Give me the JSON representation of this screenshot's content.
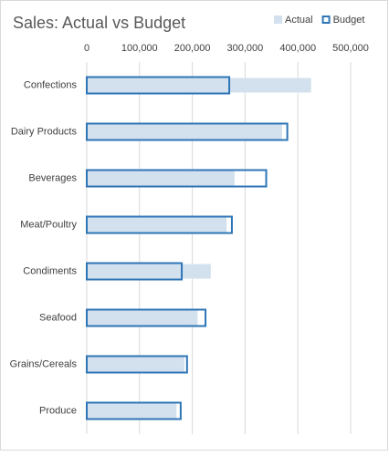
{
  "chart_data": {
    "type": "bar",
    "orientation": "horizontal",
    "title": "Sales: Actual vs Budget",
    "categories": [
      "Confections",
      "Dairy Products",
      "Beverages",
      "Meat/Poultry",
      "Condiments",
      "Seafood",
      "Grains/Cereals",
      "Produce"
    ],
    "series": [
      {
        "name": "Actual",
        "color": "#d3e0ee",
        "style": "filled",
        "values": [
          425000,
          370000,
          280000,
          265000,
          235000,
          210000,
          185000,
          170000
        ]
      },
      {
        "name": "Budget",
        "color": "#2e75b6",
        "style": "outline",
        "values": [
          270000,
          380000,
          340000,
          275000,
          180000,
          225000,
          190000,
          178000
        ]
      }
    ],
    "xlim": [
      0,
      500000
    ],
    "xticks": [
      0,
      {
        "value": 100000,
        "label": "100,000"
      },
      {
        "value": 200000,
        "label": "200,000"
      },
      {
        "value": 300000,
        "label": "300,000"
      },
      {
        "value": 400000,
        "label": "400,000"
      },
      {
        "value": 500000,
        "label": "500,000"
      }
    ],
    "grid": true,
    "legend": "top-right"
  }
}
